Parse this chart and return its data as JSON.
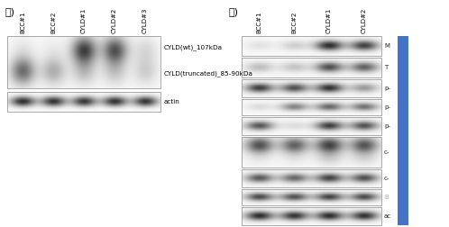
{
  "panel_a_label": "가)",
  "panel_b_label": "나)",
  "panel_a_col_labels": [
    "BCC#1",
    "BCC#2",
    "CYLD#1",
    "CYLD#2",
    "CYLD#3"
  ],
  "panel_a_row_labels": [
    "CYLD(wt)_107kDa",
    "CYLD(truncated)_85-90kDa",
    "actin"
  ],
  "panel_b_col_labels": [
    "BCC#1",
    "BCC#2",
    "CYLD#1",
    "CYLD#2"
  ],
  "panel_b_row_labels": [
    "M",
    "T",
    "p-",
    "p-",
    "p-",
    "c-",
    "c-",
    "B",
    "ac"
  ],
  "blue_bar_color": "#4472C4",
  "bg_color": "#ffffff",
  "panel_a": {
    "strip_wt": {
      "bands": [
        0.65,
        0.35,
        0.28,
        0.25,
        0.2
      ],
      "bg": 0.12,
      "two_rows": true,
      "row1": [
        0.65,
        0.35,
        0.28,
        0.25,
        0.2
      ],
      "row2": [
        0.1,
        0.08,
        0.75,
        0.7,
        0.15
      ]
    },
    "strip_actin": {
      "bands": [
        0.9,
        0.88,
        0.85,
        0.88,
        0.87
      ],
      "bg": 0.08
    }
  },
  "panel_b_strips": [
    {
      "bands": [
        0.1,
        0.18,
        0.88,
        0.8
      ],
      "bg": 0.08,
      "two_rows": false
    },
    {
      "bands": [
        0.25,
        0.22,
        0.72,
        0.65
      ],
      "bg": 0.1,
      "two_rows": false
    },
    {
      "bands": [
        0.8,
        0.72,
        0.85,
        0.4
      ],
      "bg": 0.1,
      "two_rows": false
    },
    {
      "bands": [
        0.12,
        0.5,
        0.62,
        0.58
      ],
      "bg": 0.08,
      "two_rows": false
    },
    {
      "bands": [
        0.7,
        0.12,
        0.8,
        0.72
      ],
      "bg": 0.08,
      "two_rows": false
    },
    {
      "bands": [
        0.1,
        0.1,
        0.65,
        0.6
      ],
      "bg": 0.08,
      "two_rows": true,
      "row1": [
        0.08,
        0.08,
        0.18,
        0.15
      ],
      "row2": [
        0.72,
        0.65,
        0.78,
        0.7
      ]
    },
    {
      "bands": [
        0.68,
        0.62,
        0.78,
        0.72
      ],
      "bg": 0.1,
      "two_rows": false
    },
    {
      "bands": [
        0.75,
        0.72,
        0.78,
        0.75
      ],
      "bg": 0.08,
      "two_rows": false
    },
    {
      "bands": [
        0.88,
        0.85,
        0.88,
        0.86
      ],
      "bg": 0.08,
      "two_rows": false
    }
  ]
}
